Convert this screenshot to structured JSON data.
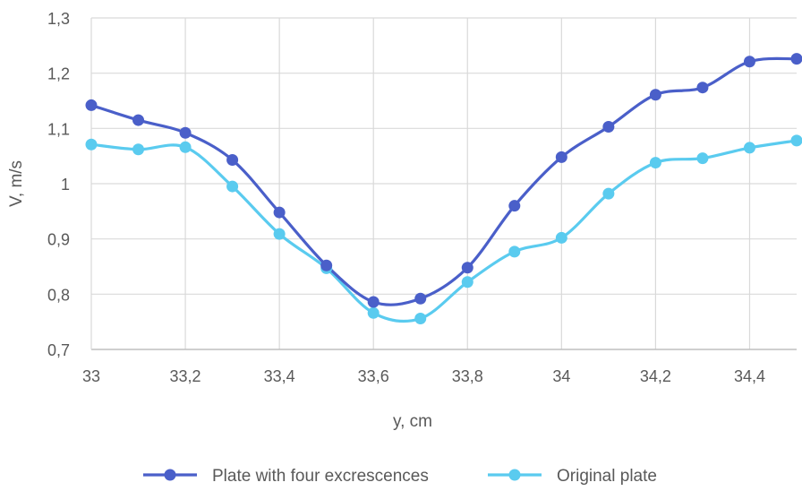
{
  "chart_data": {
    "type": "line",
    "title": "",
    "xlabel": "y, cm",
    "ylabel": "V, m/s",
    "xlim": [
      33,
      34.5
    ],
    "ylim": [
      0.7,
      1.3
    ],
    "x_tick_labels": [
      "33",
      "33,2",
      "33,4",
      "33,6",
      "33,8",
      "34",
      "34,2",
      "34,4"
    ],
    "x_tick_values": [
      33,
      33.2,
      33.4,
      33.6,
      33.8,
      34,
      34.2,
      34.4
    ],
    "y_tick_labels": [
      "0,7",
      "0,8",
      "0,9",
      "1",
      "1,1",
      "1,2",
      "1,3"
    ],
    "y_tick_values": [
      0.7,
      0.8,
      0.9,
      1.0,
      1.1,
      1.2,
      1.3
    ],
    "grid": true,
    "legend_position": "bottom",
    "smooth": true,
    "series": [
      {
        "name": "Plate with four excrescences",
        "color": "#4A5FC9",
        "x": [
          33,
          33.1,
          33.2,
          33.3,
          33.4,
          33.5,
          33.6,
          33.7,
          33.8,
          33.9,
          34,
          34.1,
          34.2,
          34.3,
          34.4,
          34.5
        ],
        "values": [
          1.142,
          1.115,
          1.092,
          1.043,
          0.948,
          0.852,
          0.786,
          0.792,
          0.848,
          0.96,
          1.048,
          1.103,
          1.161,
          1.174,
          1.221,
          1.226
        ]
      },
      {
        "name": "Original plate",
        "color": "#5ACBEF",
        "x": [
          33,
          33.1,
          33.2,
          33.3,
          33.4,
          33.5,
          33.6,
          33.7,
          33.8,
          33.9,
          34,
          34.1,
          34.2,
          34.3,
          34.4,
          34.5
        ],
        "values": [
          1.071,
          1.062,
          1.066,
          0.995,
          0.909,
          0.847,
          0.766,
          0.756,
          0.822,
          0.877,
          0.902,
          0.982,
          1.038,
          1.046,
          1.065,
          1.078
        ]
      }
    ]
  }
}
